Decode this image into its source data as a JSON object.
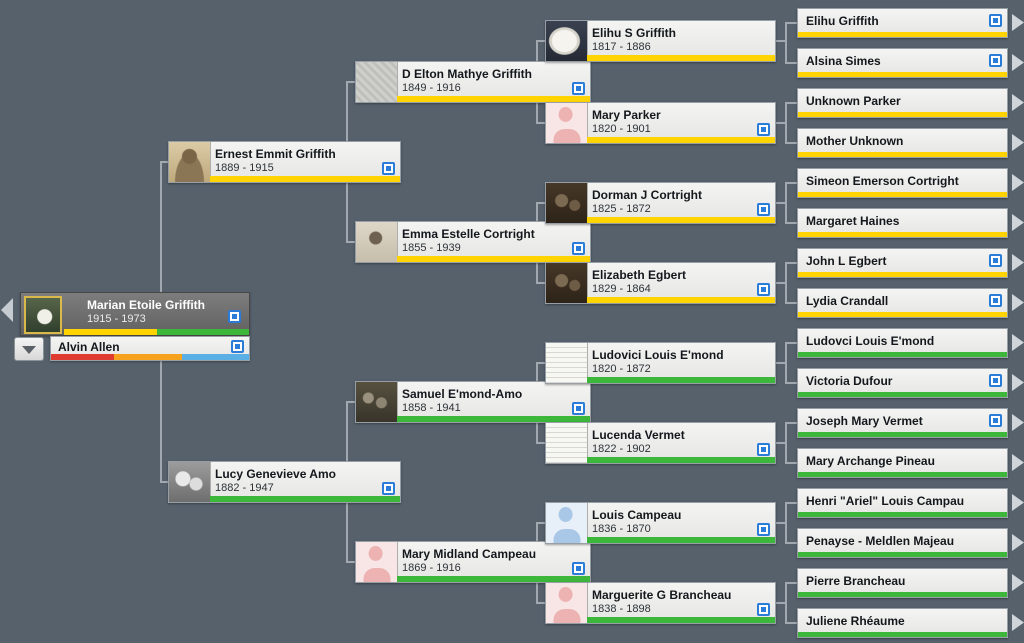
{
  "view": {
    "background": "#57616c",
    "connector_color": "#a2a8af"
  },
  "colors": {
    "paternal_line": "#ffd400",
    "maternal_line": "#3db73a",
    "media_icon_blue": "#2b7cd9",
    "spouse_bar_red": "#df3b30",
    "spouse_bar_orange": "#f6a21d",
    "spouse_bar_blue": "#5ab0e4"
  },
  "icons": {
    "media_indicator": "blue-square-with-dot",
    "expand_right": "right-triangle",
    "collapse_left": "left-triangle",
    "spouse_dropdown": "down-triangle"
  },
  "root": {
    "name": "Marian Etoile Griffith",
    "dates": "1915 - 1973"
  },
  "spouse": {
    "name": "Alvin Allen"
  },
  "gen2": [
    {
      "name": "Ernest Emmit Griffith",
      "dates": "1889 - 1915"
    },
    {
      "name": "Lucy Genevieve Amo",
      "dates": "1882 - 1947"
    }
  ],
  "gen3": [
    {
      "name": "D Elton Mathye Griffith",
      "dates": "1849 - 1916"
    },
    {
      "name": "Emma Estelle Cortright",
      "dates": "1855 - 1939"
    },
    {
      "name": "Samuel E'mond-Amo",
      "dates": "1858 - 1941"
    },
    {
      "name": "Mary Midland Campeau",
      "dates": "1869 - 1916"
    }
  ],
  "gen4": [
    {
      "name": "Elihu S Griffith",
      "dates": "1817 - 1886"
    },
    {
      "name": "Mary Parker",
      "dates": "1820 - 1901"
    },
    {
      "name": "Dorman J Cortright",
      "dates": "1825 - 1872"
    },
    {
      "name": "Elizabeth Egbert",
      "dates": "1829 - 1864"
    },
    {
      "name": "Ludovici Louis E'mond",
      "dates": "1820 - 1872"
    },
    {
      "name": "Lucenda Vermet",
      "dates": "1822 - 1902"
    },
    {
      "name": "Louis Campeau",
      "dates": "1836 - 1870"
    },
    {
      "name": "Marguerite G Brancheau",
      "dates": "1838 - 1898"
    }
  ],
  "gen5": [
    {
      "name": "Elihu Griffith"
    },
    {
      "name": "Alsina Simes"
    },
    {
      "name": "Unknown Parker"
    },
    {
      "name": "Mother Unknown"
    },
    {
      "name": "Simeon Emerson Cortright"
    },
    {
      "name": "Margaret Haines"
    },
    {
      "name": "John L Egbert"
    },
    {
      "name": "Lydia Crandall"
    },
    {
      "name": "Ludovci Louis E'mond"
    },
    {
      "name": "Victoria Dufour"
    },
    {
      "name": "Joseph Mary Vermet"
    },
    {
      "name": "Mary Archange Pineau"
    },
    {
      "name": "Henri \"Ariel\" Louis Campau"
    },
    {
      "name": "Penayse - Meldlen Majeau"
    },
    {
      "name": "Pierre Brancheau"
    },
    {
      "name": "Juliene Rhéaume"
    }
  ]
}
